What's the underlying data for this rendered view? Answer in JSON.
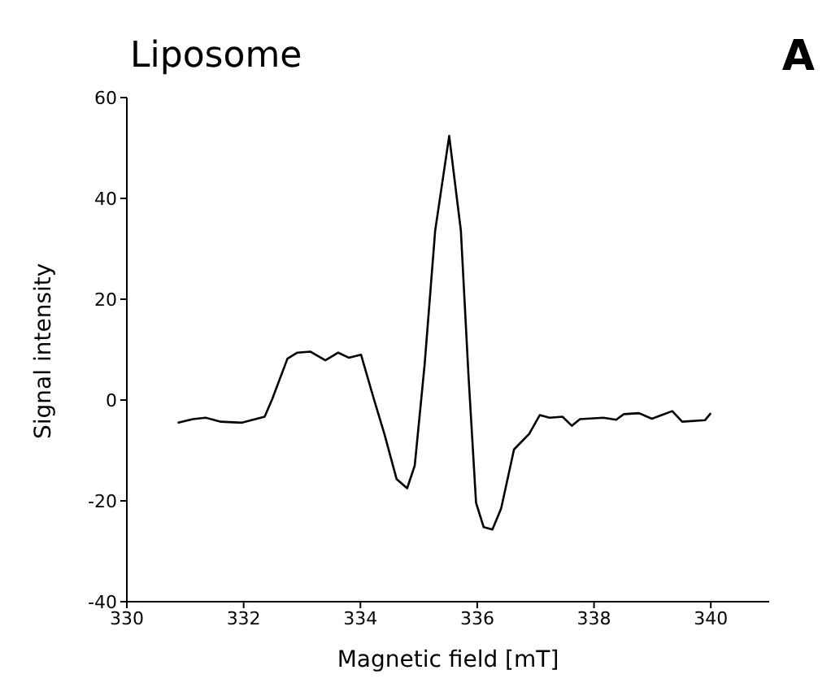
{
  "chart_data": {
    "type": "line",
    "title": "Liposome",
    "annotations": [
      "A"
    ],
    "xlabel": "Magnetic field [mT]",
    "ylabel": "Signal intensity",
    "xlim": [
      330,
      341
    ],
    "xticks": [
      330,
      332,
      334,
      336,
      338,
      340
    ],
    "ylim": [
      -40,
      60
    ],
    "yticks": [
      -40,
      -20,
      0,
      20,
      40,
      60
    ],
    "grid": false,
    "legend": false,
    "marker": "none",
    "line_style": "solid",
    "series": [
      {
        "color": "#000000",
        "x": [
          330.87,
          331.13,
          331.35,
          331.61,
          331.96,
          332.36,
          332.49,
          332.75,
          332.92,
          333.14,
          333.4,
          333.62,
          333.8,
          334.01,
          334.23,
          334.41,
          334.62,
          334.8,
          334.93,
          335.1,
          335.28,
          335.52,
          335.72,
          335.85,
          335.98,
          336.11,
          336.26,
          336.41,
          336.63,
          336.89,
          337.07,
          337.24,
          337.46,
          337.62,
          337.76,
          338.16,
          338.38,
          338.51,
          338.77,
          338.99,
          339.34,
          339.51,
          339.9,
          340.0
        ],
        "values": [
          -4.5,
          -3.8,
          -3.5,
          -4.3,
          -4.5,
          -3.3,
          0.2,
          8.2,
          9.4,
          9.6,
          7.9,
          9.4,
          8.4,
          9.0,
          0.2,
          -6.7,
          -15.7,
          -17.5,
          -13,
          7.1,
          33.6,
          52.4,
          33.6,
          5.0,
          -20.4,
          -25.2,
          -25.7,
          -21.5,
          -9.8,
          -6.7,
          -3.0,
          -3.5,
          -3.3,
          -5.1,
          -3.8,
          -3.5,
          -3.9,
          -2.8,
          -2.6,
          -3.7,
          -2.2,
          -4.3,
          -4.0,
          -2.6
        ]
      }
    ]
  }
}
